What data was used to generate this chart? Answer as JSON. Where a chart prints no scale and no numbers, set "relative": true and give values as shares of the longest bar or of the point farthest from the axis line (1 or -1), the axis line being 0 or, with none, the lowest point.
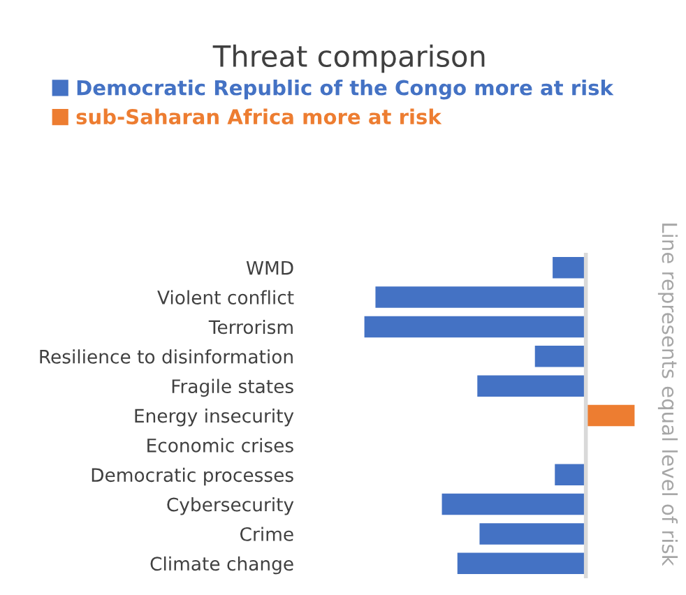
{
  "chart_data": {
    "type": "bar",
    "orientation": "horizontal",
    "relative": true,
    "title": "Threat comparison",
    "categories": [
      "WMD",
      "Violent conflict",
      "Terrorism",
      "Resilience to disinformation",
      "Fragile states",
      "Energy insecurity",
      "Economic crises",
      "Democratic processes",
      "Cybersecurity",
      "Crime",
      "Climate change"
    ],
    "series": [
      {
        "name": "Democratic Republic of the Congo more at risk",
        "color": "#4472c4",
        "values": [
          -0.15,
          -0.95,
          -1,
          -0.23,
          -0.49,
          null,
          null,
          -0.14,
          -0.65,
          -0.48,
          -0.58
        ]
      },
      {
        "name": "sub-Saharan Africa more at risk",
        "color": "#ed7d31",
        "values": [
          null,
          null,
          null,
          null,
          null,
          0.22,
          null,
          null,
          null,
          null,
          null
        ]
      }
    ],
    "ref_lines": [
      {
        "axis": "x",
        "value": 0,
        "color": "#d9d9d9"
      }
    ],
    "annotations": [
      "Line represents equal level of risk"
    ],
    "legend": "top",
    "grid": false
  }
}
